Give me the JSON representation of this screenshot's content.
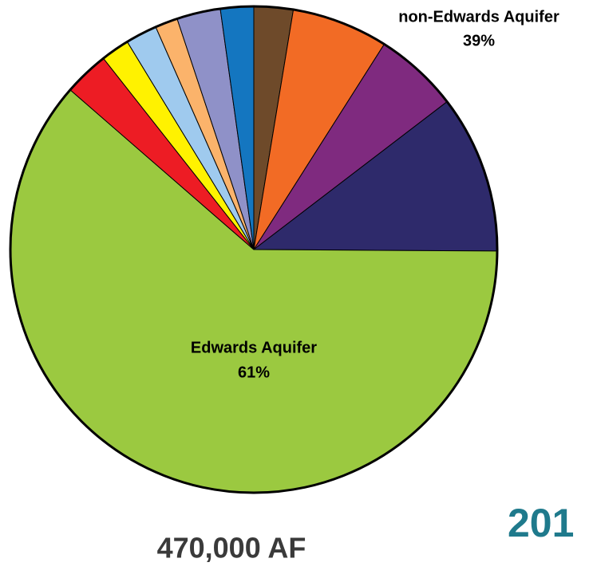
{
  "chart_data": {
    "type": "pie",
    "values": [
      2.6,
      6.4,
      5.6,
      10.5,
      61.3,
      3.0,
      1.9,
      2.1,
      1.5,
      2.9,
      2.2
    ],
    "colors": [
      "#6e4a2a",
      "#f26b25",
      "#7f2a7f",
      "#2e2a6b",
      "#9bc940",
      "#ed1c24",
      "#fff200",
      "#9fcaee",
      "#fbb36b",
      "#8f91c8",
      "#1476c0"
    ],
    "group_labels": [
      "Edwards Aquifer",
      "non-Edwards Aquifer"
    ],
    "group_value_labels": [
      "61%",
      "39%"
    ],
    "total_label": "470,000 AF",
    "year_label": "201"
  }
}
